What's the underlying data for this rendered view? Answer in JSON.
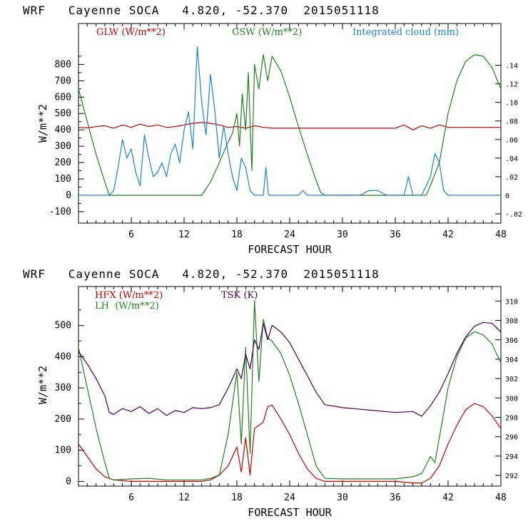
{
  "colors": {
    "red": "#c00000",
    "green": "#208020",
    "blue": "#1a80e0",
    "purple": "#440044",
    "axis": "#000000"
  },
  "chart_data": [
    {
      "type": "line",
      "title": "WRF   Cayenne SOCA   4.820, -52.370  2015051118",
      "xlabel": "FORECAST HOUR",
      "ylabel": "W/m**2",
      "xlim": [
        0,
        48
      ],
      "ylim": [
        -170,
        1050
      ],
      "y2lim": [
        -0.03,
        0.185
      ],
      "xticks": [
        "6",
        "12",
        "18",
        "24",
        "30",
        "36",
        "42",
        "48"
      ],
      "yticks": [
        "-100",
        "0",
        "100",
        "200",
        "300",
        "400",
        "500",
        "600",
        "700",
        "800"
      ],
      "y2ticks": [
        "-.02",
        "0",
        ".02",
        ".04",
        ".06",
        ".08",
        ".10",
        ".12",
        ".14"
      ],
      "legend": [
        "GLW (W/m**2)",
        "GSW (W/m**2)",
        "Integrated cloud (mm)"
      ],
      "series": [
        {
          "name": "GLW (W/m**2)",
          "axis": "left",
          "color": "red",
          "x": [
            0,
            1,
            2,
            3,
            4,
            5,
            6,
            7,
            8,
            9,
            10,
            11,
            12,
            13,
            14,
            15,
            16,
            17,
            18,
            19,
            20,
            21,
            22,
            24,
            30,
            36,
            37,
            38,
            39,
            40,
            41,
            42,
            48
          ],
          "y": [
            415,
            412,
            420,
            425,
            410,
            430,
            415,
            435,
            420,
            430,
            415,
            420,
            430,
            440,
            445,
            440,
            430,
            415,
            420,
            410,
            425,
            415,
            410,
            410,
            410,
            410,
            430,
            400,
            425,
            410,
            430,
            415,
            415
          ]
        },
        {
          "name": "GSW (W/m**2)",
          "axis": "left",
          "color": "green",
          "x": [
            0,
            1,
            2,
            3,
            3.5,
            4,
            14,
            15,
            16,
            16.8,
            17.5,
            18,
            18.3,
            18.6,
            19,
            19.3,
            19.7,
            20,
            20.5,
            21,
            21.5,
            22,
            23,
            24,
            25,
            26,
            27,
            27.5,
            28,
            39,
            39.5,
            40,
            41,
            42,
            43,
            44,
            45,
            46,
            47,
            48
          ],
          "y": [
            650,
            450,
            250,
            80,
            0,
            0,
            0,
            80,
            200,
            300,
            380,
            500,
            300,
            620,
            400,
            750,
            150,
            800,
            650,
            860,
            700,
            850,
            760,
            600,
            420,
            250,
            90,
            20,
            0,
            0,
            0,
            60,
            200,
            500,
            700,
            820,
            860,
            850,
            780,
            650
          ]
        },
        {
          "name": "Integrated cloud (mm)",
          "axis": "right",
          "color": "blue",
          "x": [
            0,
            3.5,
            4,
            4.5,
            5,
            5.5,
            6,
            6.5,
            7,
            7.5,
            8,
            8.5,
            9,
            9.5,
            10,
            10.5,
            11,
            11.5,
            12,
            12.5,
            13,
            13.5,
            14,
            14.5,
            15,
            15.5,
            16,
            16.5,
            17,
            17.5,
            18,
            18.5,
            19,
            19.5,
            20,
            21,
            21.3,
            21.6,
            22,
            25,
            25.5,
            26,
            32,
            33,
            34,
            35,
            36,
            37,
            37.5,
            38,
            39,
            40,
            40.5,
            41,
            41.5,
            42,
            48
          ],
          "y": [
            0,
            0,
            0.005,
            0.03,
            0.06,
            0.04,
            0.05,
            0.025,
            0.01,
            0.065,
            0.04,
            0.02,
            0.025,
            0.035,
            0.02,
            0.045,
            0.055,
            0.035,
            0.07,
            0.09,
            0.05,
            0.16,
            0.1,
            0.065,
            0.13,
            0.09,
            0.04,
            0.075,
            0.045,
            0.02,
            0.005,
            0.04,
            0.03,
            0.005,
            0,
            0,
            0.03,
            0,
            0,
            0,
            0.005,
            0,
            0,
            0.005,
            0.005,
            0,
            0,
            0,
            0.02,
            0,
            0,
            0.02,
            0.045,
            0.035,
            0.005,
            0,
            0
          ]
        }
      ]
    },
    {
      "type": "line",
      "title": "WRF   Cayenne SOCA   4.820, -52.370  2015051118",
      "xlabel": "FORECAST HOUR",
      "ylabel": "W/m**2",
      "xlim": [
        0,
        48
      ],
      "ylim": [
        -15,
        625
      ],
      "y2lim": [
        290.9,
        311.5
      ],
      "xticks": [
        "6",
        "12",
        "18",
        "24",
        "30",
        "36",
        "42",
        "48"
      ],
      "yticks": [
        "0",
        "100",
        "200",
        "300",
        "400",
        "500"
      ],
      "y2ticks": [
        "292",
        "294",
        "296",
        "298",
        "300",
        "302",
        "304",
        "306",
        "308",
        "310"
      ],
      "legend": [
        "HFX (W/m**2)",
        "LH  (W/m**2)",
        "TSK (K)"
      ],
      "series": [
        {
          "name": "HFX (W/m**2)",
          "axis": "left",
          "color": "red",
          "x": [
            0,
            1,
            2,
            3,
            4,
            6,
            10,
            14,
            15,
            16,
            17,
            18,
            18.5,
            19,
            19.5,
            20,
            21,
            21.5,
            22,
            23,
            24,
            25,
            26,
            27,
            28,
            36,
            38,
            39,
            40,
            41,
            42,
            43,
            44,
            45,
            46,
            47,
            48
          ],
          "y": [
            120,
            80,
            40,
            15,
            5,
            0,
            0,
            0,
            5,
            20,
            50,
            110,
            30,
            140,
            20,
            170,
            190,
            240,
            245,
            200,
            150,
            90,
            40,
            10,
            0,
            0,
            -5,
            -5,
            10,
            50,
            120,
            180,
            230,
            250,
            240,
            210,
            170
          ]
        },
        {
          "name": "LH  (W/m**2)",
          "axis": "left",
          "color": "green",
          "x": [
            0,
            1,
            2,
            3,
            3.5,
            4,
            6,
            8,
            10,
            12,
            14,
            15,
            16,
            17,
            18,
            18.5,
            19,
            19.5,
            20,
            20.5,
            21,
            21.5,
            22,
            23,
            24,
            25,
            26,
            27,
            28,
            30,
            36,
            38,
            39,
            40,
            40.5,
            41,
            42,
            43,
            44,
            45,
            46,
            47,
            48
          ],
          "y": [
            430,
            300,
            170,
            60,
            10,
            5,
            8,
            10,
            5,
            5,
            5,
            10,
            20,
            150,
            350,
            120,
            430,
            90,
            580,
            320,
            520,
            460,
            450,
            410,
            340,
            250,
            150,
            50,
            10,
            8,
            8,
            15,
            25,
            80,
            60,
            140,
            300,
            400,
            460,
            480,
            470,
            440,
            380
          ]
        },
        {
          "name": "TSK (K)",
          "axis": "right",
          "color": "purple",
          "x": [
            0,
            1,
            2,
            3,
            3.5,
            4,
            5,
            6,
            7,
            8,
            9,
            10,
            11,
            12,
            13,
            14,
            15,
            16,
            17,
            18,
            18.5,
            19,
            19.5,
            20,
            20.5,
            21,
            21.5,
            22,
            23,
            24,
            25,
            26,
            27,
            28,
            30,
            36,
            38,
            39,
            40,
            41,
            42,
            43,
            44,
            45,
            46,
            47,
            48
          ],
          "y": [
            304.8,
            303.5,
            302,
            300.2,
            298.5,
            298.3,
            298.9,
            298.6,
            299.1,
            298.4,
            298.9,
            298.2,
            298.7,
            298.5,
            299.0,
            298.9,
            299.0,
            299.3,
            301.0,
            303,
            302,
            304.5,
            303,
            306,
            305,
            307.7,
            306,
            307.5,
            306.8,
            305.7,
            304.0,
            302.3,
            300.6,
            299.3,
            299.0,
            298.5,
            298.6,
            298.1,
            299.2,
            300.6,
            302.5,
            304.6,
            306.3,
            307.4,
            307.8,
            307.7,
            306.8
          ]
        }
      ]
    }
  ]
}
